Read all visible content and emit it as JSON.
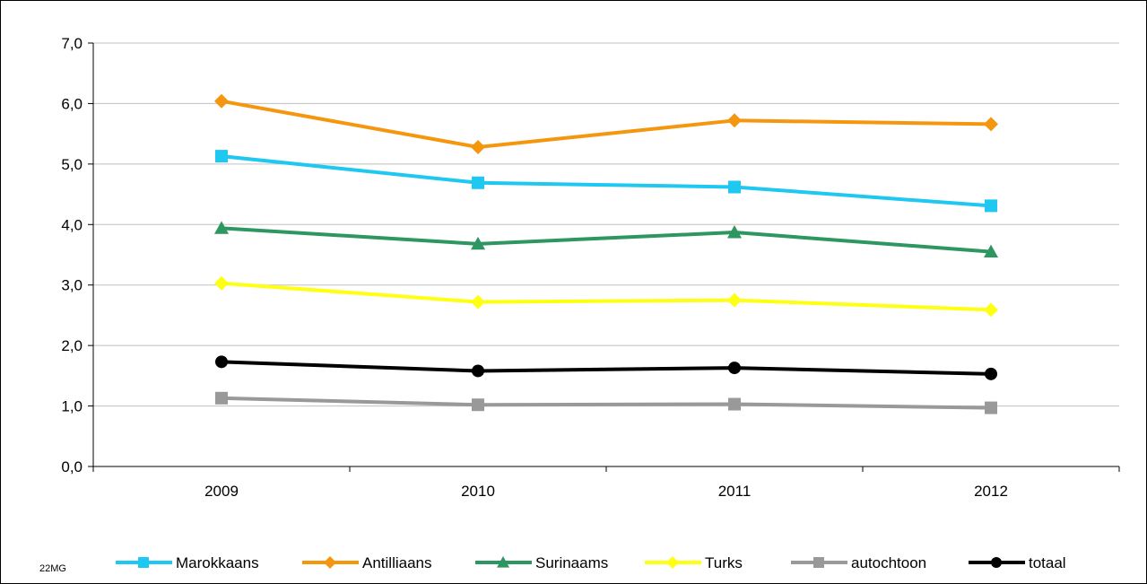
{
  "chart_data": {
    "type": "line",
    "title": "",
    "xlabel": "",
    "ylabel": "",
    "categories": [
      "2009",
      "2010",
      "2011",
      "2012"
    ],
    "ylim": [
      0,
      7
    ],
    "yticks": [
      "0,0",
      "1,0",
      "2,0",
      "3,0",
      "4,0",
      "5,0",
      "6,0",
      "7,0"
    ],
    "grid": true,
    "legend_position": "bottom",
    "series": [
      {
        "name": "Marokkaans",
        "values": [
          5.13,
          4.69,
          4.62,
          4.31
        ],
        "color": "#1ec8f0",
        "marker": "square"
      },
      {
        "name": "Antilliaans",
        "values": [
          6.04,
          5.28,
          5.72,
          5.66
        ],
        "color": "#f5960f",
        "marker": "diamond"
      },
      {
        "name": "Surinaams",
        "values": [
          3.94,
          3.68,
          3.87,
          3.55
        ],
        "color": "#2e9660",
        "marker": "triangle"
      },
      {
        "name": "Turks",
        "values": [
          3.03,
          2.72,
          2.75,
          2.59
        ],
        "color": "#ffff14",
        "marker": "diamond"
      },
      {
        "name": "autochtoon",
        "values": [
          1.13,
          1.02,
          1.03,
          0.97
        ],
        "color": "#999999",
        "marker": "square"
      },
      {
        "name": "totaal",
        "values": [
          1.73,
          1.58,
          1.63,
          1.53
        ],
        "color": "#000000",
        "marker": "circle"
      }
    ]
  },
  "footer": {
    "code": "22MG"
  }
}
